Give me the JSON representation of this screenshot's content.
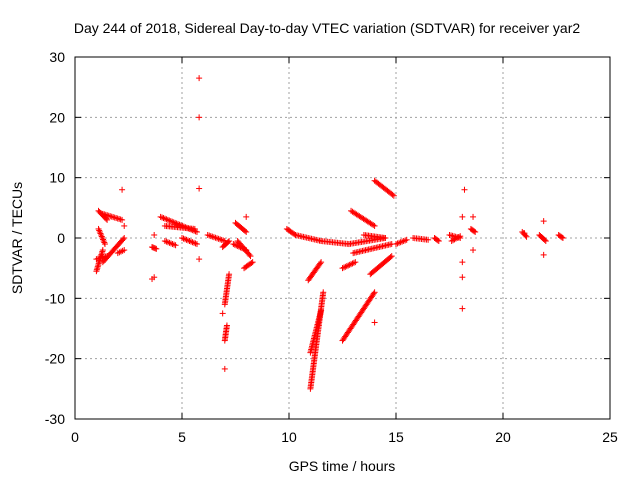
{
  "chart_data": {
    "type": "scatter",
    "title": "Day 244 of 2018, Sidereal Day-to-day VTEC variation (SDTVAR) for receiver yar2",
    "xlabel": "GPS time / hours",
    "ylabel": "SDTVAR / TECUs",
    "xlim": [
      0,
      25
    ],
    "ylim": [
      -30,
      30
    ],
    "x_ticks": [
      0,
      5,
      10,
      15,
      20,
      25
    ],
    "y_ticks": [
      -30,
      -20,
      -10,
      0,
      10,
      20,
      30
    ],
    "x_tick_labels": [
      "0",
      "5",
      "10",
      "15",
      "20",
      "25"
    ],
    "y_tick_labels": [
      "-30",
      "-20",
      "-10",
      "0",
      "10",
      "20",
      "30"
    ],
    "grid": true,
    "marker": "plus",
    "color": "#ff0000",
    "segments": [
      {
        "x": [
          1.0,
          1.5
        ],
        "y": [
          -3.5,
          -3.0
        ]
      },
      {
        "x": [
          1.0,
          1.3
        ],
        "y": [
          -5.5,
          -2.0
        ]
      },
      {
        "x": [
          1.1,
          1.5
        ],
        "y": [
          4.5,
          3.0
        ]
      },
      {
        "x": [
          1.3,
          2.2
        ],
        "y": [
          4.0,
          3.0
        ]
      },
      {
        "x": [
          1.1,
          1.4
        ],
        "y": [
          1.5,
          -1.0
        ]
      },
      {
        "x": [
          1.3,
          2.3
        ],
        "y": [
          -4.0,
          0.0
        ]
      },
      {
        "x": [
          2.0,
          2.3
        ],
        "y": [
          -2.5,
          -2.0
        ]
      },
      {
        "x": [
          3.6,
          3.8
        ],
        "y": [
          -1.5,
          -1.8
        ]
      },
      {
        "x": [
          4.0,
          5.7
        ],
        "y": [
          3.5,
          1.0
        ]
      },
      {
        "x": [
          4.2,
          5.6
        ],
        "y": [
          2.0,
          1.5
        ]
      },
      {
        "x": [
          4.2,
          4.7
        ],
        "y": [
          -0.5,
          -1.2
        ]
      },
      {
        "x": [
          5.0,
          5.7
        ],
        "y": [
          0.0,
          -1.0
        ]
      },
      {
        "x": [
          6.2,
          7.0
        ],
        "y": [
          0.5,
          -0.5
        ]
      },
      {
        "x": [
          6.9,
          7.2
        ],
        "y": [
          -1.5,
          -0.5
        ]
      },
      {
        "x": [
          7.0,
          7.2
        ],
        "y": [
          -11.0,
          -6.0
        ]
      },
      {
        "x": [
          7.0,
          7.1
        ],
        "y": [
          -17.0,
          -14.5
        ]
      },
      {
        "x": [
          7.5,
          8.0
        ],
        "y": [
          2.5,
          1.0
        ]
      },
      {
        "x": [
          7.4,
          8.0
        ],
        "y": [
          -1.0,
          -2.0
        ]
      },
      {
        "x": [
          7.6,
          8.2
        ],
        "y": [
          -0.5,
          -3.0
        ]
      },
      {
        "x": [
          7.9,
          8.3
        ],
        "y": [
          -5.0,
          -4.0
        ]
      },
      {
        "x": [
          9.9,
          10.3
        ],
        "y": [
          1.5,
          0.5
        ]
      },
      {
        "x": [
          10.3,
          11.5
        ],
        "y": [
          0.5,
          -0.5
        ]
      },
      {
        "x": [
          10.9,
          11.5
        ],
        "y": [
          -7.0,
          -4.0
        ]
      },
      {
        "x": [
          11.0,
          11.6
        ],
        "y": [
          -25.0,
          -9.0
        ]
      },
      {
        "x": [
          11.0,
          11.5
        ],
        "y": [
          -19.0,
          -12.0
        ]
      },
      {
        "x": [
          11.5,
          12.8
        ],
        "y": [
          -0.5,
          -1.0
        ]
      },
      {
        "x": [
          12.5,
          13.1
        ],
        "y": [
          -5.0,
          -4.0
        ]
      },
      {
        "x": [
          12.5,
          14.0
        ],
        "y": [
          -17.0,
          -9.0
        ]
      },
      {
        "x": [
          12.8,
          14.5
        ],
        "y": [
          -1.0,
          0.0
        ]
      },
      {
        "x": [
          12.9,
          14.0
        ],
        "y": [
          4.5,
          2.0
        ]
      },
      {
        "x": [
          13.0,
          14.8
        ],
        "y": [
          -2.5,
          -1.0
        ]
      },
      {
        "x": [
          13.5,
          14.5
        ],
        "y": [
          0.5,
          0.0
        ]
      },
      {
        "x": [
          13.8,
          14.8
        ],
        "y": [
          -6.0,
          -3.0
        ]
      },
      {
        "x": [
          14.0,
          14.9
        ],
        "y": [
          9.5,
          7.0
        ]
      },
      {
        "x": [
          15.0,
          15.5
        ],
        "y": [
          -1.0,
          -0.3
        ]
      },
      {
        "x": [
          15.8,
          16.5
        ],
        "y": [
          0.0,
          -0.3
        ]
      },
      {
        "x": [
          16.8,
          17.0
        ],
        "y": [
          0.0,
          -0.5
        ]
      },
      {
        "x": [
          17.5,
          18.0
        ],
        "y": [
          0.5,
          0.0
        ]
      },
      {
        "x": [
          17.6,
          18.0
        ],
        "y": [
          -0.5,
          0.3
        ]
      },
      {
        "x": [
          18.5,
          18.7
        ],
        "y": [
          1.5,
          1.0
        ]
      },
      {
        "x": [
          20.9,
          21.1
        ],
        "y": [
          1.0,
          0.2
        ]
      },
      {
        "x": [
          21.7,
          22.0
        ],
        "y": [
          0.5,
          -0.5
        ]
      },
      {
        "x": [
          22.6,
          22.8
        ],
        "y": [
          0.5,
          0.0
        ]
      }
    ],
    "isolated_points": [
      {
        "x": 2.2,
        "y": 8.0
      },
      {
        "x": 2.3,
        "y": 2.0
      },
      {
        "x": 3.7,
        "y": 0.5
      },
      {
        "x": 3.7,
        "y": -6.5
      },
      {
        "x": 3.6,
        "y": -6.8
      },
      {
        "x": 5.8,
        "y": 26.5
      },
      {
        "x": 5.8,
        "y": 20.0
      },
      {
        "x": 5.8,
        "y": 8.2
      },
      {
        "x": 5.8,
        "y": -3.5
      },
      {
        "x": 7.0,
        "y": -21.7
      },
      {
        "x": 6.9,
        "y": -12.5
      },
      {
        "x": 8.0,
        "y": 3.5
      },
      {
        "x": 14.0,
        "y": -14.0
      },
      {
        "x": 18.2,
        "y": 8.0
      },
      {
        "x": 18.1,
        "y": 3.5
      },
      {
        "x": 18.1,
        "y": -4.0
      },
      {
        "x": 18.1,
        "y": -6.5
      },
      {
        "x": 18.1,
        "y": -11.7
      },
      {
        "x": 18.6,
        "y": 3.5
      },
      {
        "x": 18.6,
        "y": -2.0
      },
      {
        "x": 21.9,
        "y": 2.8
      },
      {
        "x": 21.9,
        "y": -2.8
      },
      {
        "x": 21.0,
        "y": 0.8
      }
    ]
  }
}
